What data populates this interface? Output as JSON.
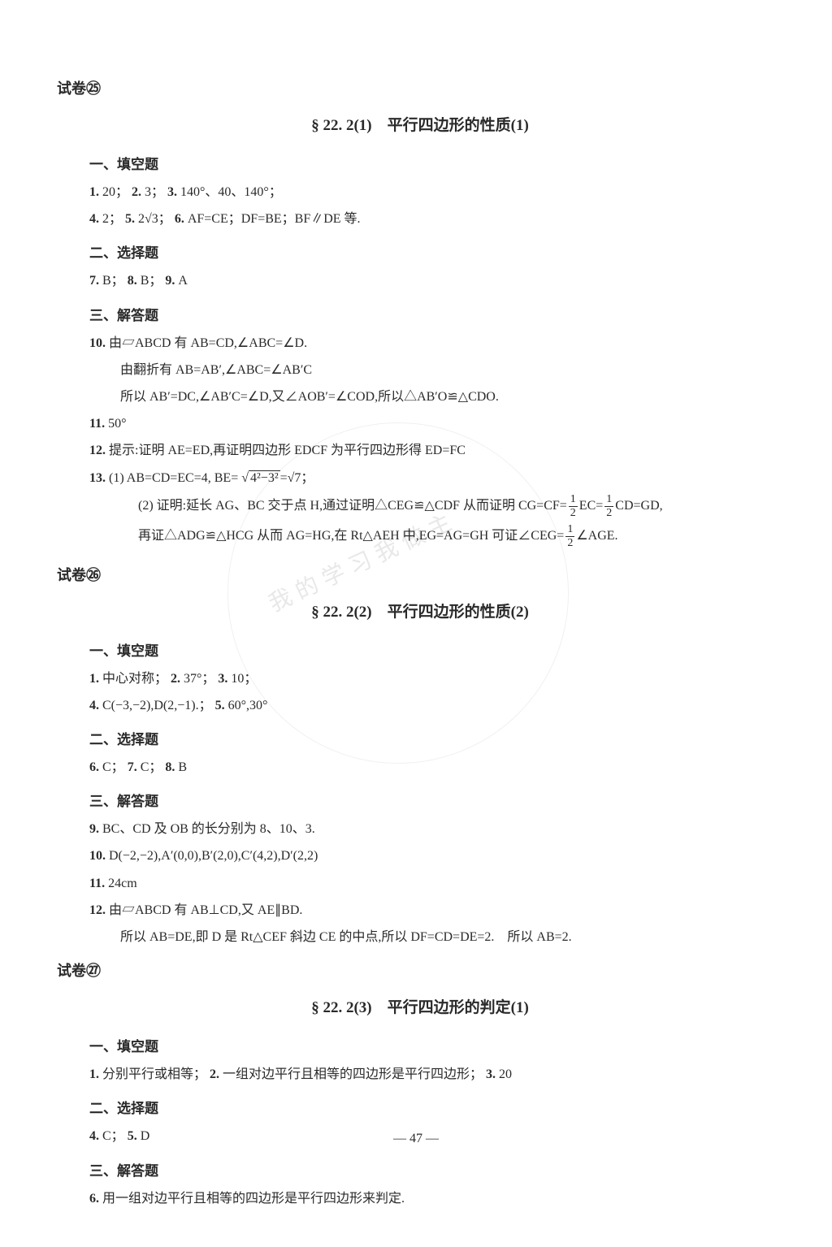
{
  "page_number": "— 47 —",
  "watermark": "我的学习我做主",
  "sections": [
    {
      "volume": "试卷㉕",
      "title": "§ 22. 2(1)　平行四边形的性质(1)",
      "groups": [
        {
          "heading": "一、填空题",
          "items": [
            {
              "n": "1.",
              "t": "20；",
              "n2": "2.",
              "t2": "3；",
              "n3": "3.",
              "t3": "140°、40、140°；"
            },
            {
              "n": "4.",
              "t": "2；",
              "n2": "5.",
              "t2": "2√3；",
              "n3": "6.",
              "t3": "AF=CE；DF=BE；BF∥DE 等."
            }
          ]
        },
        {
          "heading": "二、选择题",
          "items": [
            {
              "n": "7.",
              "t": "B；",
              "n2": "8.",
              "t2": "B；",
              "n3": "9.",
              "t3": "A"
            }
          ]
        },
        {
          "heading": "三、解答题",
          "items": [
            {
              "n": "10.",
              "t": "由▱ABCD 有 AB=CD,∠ABC=∠D."
            },
            {
              "sub": true,
              "t": "由翻折有 AB=AB′,∠ABC=∠AB′C"
            },
            {
              "sub": true,
              "t": "所以 AB′=DC,∠AB′C=∠D,又∠AOB′=∠COD,所以△AB′O≌△CDO."
            },
            {
              "n": "11.",
              "t": "50°"
            },
            {
              "n": "12.",
              "t": "提示:证明 AE=ED,再证明四边形 EDCF 为平行四边形得 ED=FC"
            },
            {
              "n": "13.",
              "t_html": "(1) AB=CD=EC=4, BE= √<span class='sqrt'>4²−3²</span>=√7；"
            },
            {
              "sub2": true,
              "t_html": "(2) 证明:延长 AG、BC 交于点 H,通过证明△CEG≌△CDF 从而证明 CG=CF=<span class='frac'><span class='top'>1</span><span class='bot'>2</span></span>EC=<span class='frac'><span class='top'>1</span><span class='bot'>2</span></span>CD=GD,"
            },
            {
              "sub2": true,
              "t_html": "再证△ADG≌△HCG 从而 AG=HG,在 Rt△AEH 中,EG=AG=GH 可证∠CEG=<span class='frac'><span class='top'>1</span><span class='bot'>2</span></span>∠AGE."
            }
          ]
        }
      ]
    },
    {
      "volume": "试卷㉖",
      "title": "§ 22. 2(2)　平行四边形的性质(2)",
      "groups": [
        {
          "heading": "一、填空题",
          "items": [
            {
              "n": "1.",
              "t": "中心对称；",
              "n2": "2.",
              "t2": "37°；",
              "n3": "3.",
              "t3": "10；"
            },
            {
              "n": "4.",
              "t": "C(−3,−2),D(2,−1).；",
              "n2": "5.",
              "t2": "60°,30°"
            }
          ]
        },
        {
          "heading": "二、选择题",
          "items": [
            {
              "n": "6.",
              "t": "C；",
              "n2": "7.",
              "t2": "C；",
              "n3": "8.",
              "t3": "B"
            }
          ]
        },
        {
          "heading": "三、解答题",
          "items": [
            {
              "n": "9.",
              "t": "BC、CD 及 OB 的长分别为 8、10、3."
            },
            {
              "n": "10.",
              "t": "D(−2,−2),A′(0,0),B′(2,0),C′(4,2),D′(2,2)"
            },
            {
              "n": "11.",
              "t": "24cm"
            },
            {
              "n": "12.",
              "t": "由▱ABCD 有 AB⊥CD,又 AE∥BD."
            },
            {
              "sub": true,
              "t": "所以 AB=DE,即 D 是 Rt△CEF 斜边 CE 的中点,所以 DF=CD=DE=2.　所以 AB=2."
            }
          ]
        }
      ]
    },
    {
      "volume": "试卷㉗",
      "title": "§ 22. 2(3)　平行四边形的判定(1)",
      "groups": [
        {
          "heading": "一、填空题",
          "items": [
            {
              "n": "1.",
              "t": "分别平行或相等；",
              "n2": "2.",
              "t2": "一组对边平行且相等的四边形是平行四边形；",
              "n3": "3.",
              "t3": "20"
            }
          ]
        },
        {
          "heading": "二、选择题",
          "items": [
            {
              "n": "4.",
              "t": "C；",
              "n2": "5.",
              "t2": "D"
            }
          ]
        },
        {
          "heading": "三、解答题",
          "items": [
            {
              "n": "6.",
              "t": "用一组对边平行且相等的四边形是平行四边形来判定."
            }
          ]
        }
      ]
    }
  ]
}
